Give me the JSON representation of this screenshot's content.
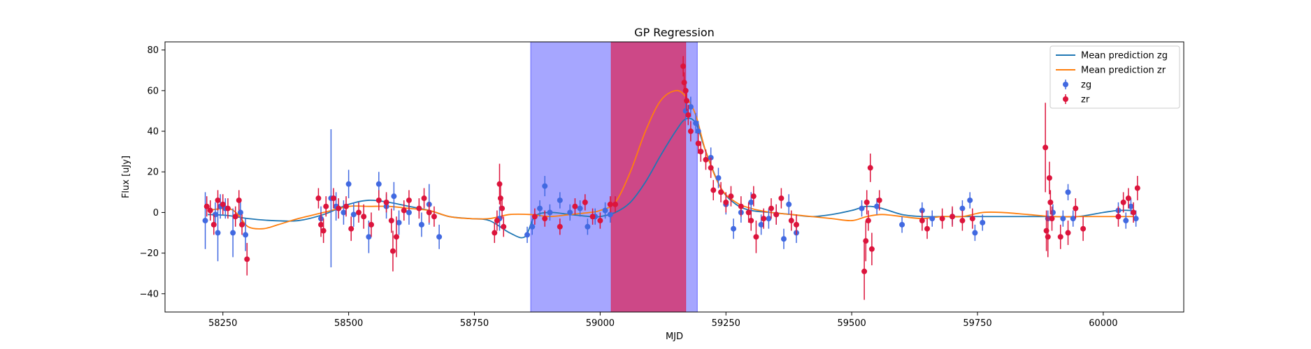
{
  "chart_data": {
    "type": "scatter",
    "title": "GP Regression",
    "xlabel": "MJD",
    "ylabel": "Flux [uJy]",
    "xlim": [
      58135,
      60160
    ],
    "ylim": [
      -49,
      84
    ],
    "x_ticks": [
      58250,
      58500,
      58750,
      59000,
      59250,
      59500,
      59750,
      60000
    ],
    "y_ticks": [
      -40,
      -20,
      0,
      20,
      40,
      60,
      80
    ],
    "grid": false,
    "legend_position": "top-right",
    "colors": {
      "zg_line": "#1f77b4",
      "zr_line": "#ff7f0e",
      "zg_points": "#4169e1",
      "zr_points": "#dc143c",
      "span_blue": "#6666ff",
      "span_red": "#d6336c"
    },
    "spans": [
      {
        "x0": 58862,
        "x1": 59193,
        "color": "#6666ff",
        "opacity": 0.58
      },
      {
        "x0": 59022,
        "x1": 59170,
        "color": "#d6336c",
        "opacity": 0.82
      }
    ],
    "series": [
      {
        "name": "Mean prediction zg",
        "kind": "line",
        "color": "#1f77b4",
        "x": [
          58220,
          58260,
          58300,
          58350,
          58400,
          58450,
          58500,
          58540,
          58580,
          58620,
          58660,
          58700,
          58740,
          58780,
          58820,
          58850,
          58870,
          58900,
          58940,
          58980,
          59000,
          59030,
          59060,
          59090,
          59120,
          59150,
          59170,
          59190,
          59210,
          59240,
          59270,
          59300,
          59340,
          59380,
          59420,
          59460,
          59500,
          59530,
          59560,
          59600,
          59640,
          59680,
          59720,
          59760,
          59800,
          59850,
          59900,
          59950,
          60000,
          60030,
          60060
        ],
        "y": [
          -1,
          -1.5,
          -3,
          -4,
          -4,
          -1,
          4,
          6,
          5,
          3,
          1,
          -2,
          -3,
          -4,
          -10,
          -12,
          -2,
          0,
          -1,
          -2,
          -2,
          0,
          5,
          15,
          28,
          40,
          46,
          44,
          30,
          12,
          4,
          1,
          0,
          -1,
          -2,
          -1,
          1,
          3,
          2,
          -1,
          -2,
          -2,
          -2,
          -2,
          -2,
          -2,
          -2,
          -2,
          0,
          1,
          1
        ]
      },
      {
        "name": "Mean prediction zr",
        "kind": "line",
        "color": "#ff7f0e",
        "x": [
          58220,
          58260,
          58280,
          58300,
          58330,
          58360,
          58400,
          58450,
          58500,
          58540,
          58580,
          58620,
          58660,
          58700,
          58740,
          58780,
          58820,
          58860,
          58900,
          58940,
          58980,
          59000,
          59030,
          59060,
          59090,
          59120,
          59150,
          59170,
          59190,
          59210,
          59240,
          59270,
          59300,
          59340,
          59380,
          59420,
          59460,
          59500,
          59530,
          59560,
          59600,
          59640,
          59680,
          59720,
          59760,
          59800,
          59850,
          59900,
          59950,
          60000,
          60030,
          60060
        ],
        "y": [
          1,
          2,
          -1,
          -7,
          -8,
          -6,
          -3,
          0,
          3,
          3,
          3,
          2,
          1,
          -2,
          -3,
          -3,
          -1,
          -1,
          -2,
          -1,
          0,
          1,
          5,
          20,
          40,
          55,
          60,
          57,
          48,
          30,
          12,
          5,
          2,
          0,
          -1,
          -2,
          -3,
          -4,
          -2,
          -1,
          -2,
          -3,
          -2,
          -2,
          0,
          0,
          -1,
          -2,
          -2,
          -2,
          -2,
          -2
        ]
      },
      {
        "name": "zg",
        "kind": "errorbar",
        "color": "#4169e1",
        "points": [
          [
            58215,
            -4,
            14
          ],
          [
            58235,
            -1,
            6
          ],
          [
            58240,
            -10,
            14
          ],
          [
            58245,
            3,
            6
          ],
          [
            58255,
            2,
            5
          ],
          [
            58270,
            -10,
            12
          ],
          [
            58285,
            0,
            6
          ],
          [
            58295,
            -11,
            8
          ],
          [
            58445,
            -3,
            6
          ],
          [
            58465,
            7,
            34
          ],
          [
            58475,
            3,
            7
          ],
          [
            58490,
            0,
            6
          ],
          [
            58500,
            14,
            7
          ],
          [
            58510,
            -1,
            6
          ],
          [
            58540,
            -12,
            8
          ],
          [
            58560,
            14,
            6
          ],
          [
            58575,
            3,
            6
          ],
          [
            58590,
            8,
            7
          ],
          [
            58600,
            -5,
            6
          ],
          [
            58620,
            0,
            6
          ],
          [
            58645,
            -6,
            6
          ],
          [
            58660,
            4,
            10
          ],
          [
            58680,
            -12,
            6
          ],
          [
            58800,
            -3,
            6
          ],
          [
            58855,
            -11,
            4
          ],
          [
            58865,
            -7,
            4
          ],
          [
            58880,
            2,
            4
          ],
          [
            58890,
            13,
            5
          ],
          [
            58900,
            0,
            4
          ],
          [
            58920,
            6,
            4
          ],
          [
            58940,
            0,
            4
          ],
          [
            58960,
            2,
            4
          ],
          [
            58975,
            -7,
            4
          ],
          [
            58990,
            -2,
            4
          ],
          [
            59010,
            1,
            4
          ],
          [
            59020,
            -1,
            4
          ],
          [
            59170,
            50,
            5
          ],
          [
            59180,
            52,
            5
          ],
          [
            59190,
            44,
            5
          ],
          [
            59195,
            40,
            5
          ],
          [
            59200,
            30,
            5
          ],
          [
            59220,
            27,
            5
          ],
          [
            59235,
            17,
            5
          ],
          [
            59250,
            4,
            5
          ],
          [
            59265,
            -8,
            5
          ],
          [
            59280,
            0,
            5
          ],
          [
            59300,
            5,
            5
          ],
          [
            59320,
            -6,
            5
          ],
          [
            59335,
            -3,
            5
          ],
          [
            59350,
            -1,
            5
          ],
          [
            59365,
            -13,
            5
          ],
          [
            59375,
            4,
            5
          ],
          [
            59390,
            -10,
            5
          ],
          [
            59520,
            2,
            4
          ],
          [
            59550,
            3,
            4
          ],
          [
            59600,
            -6,
            4
          ],
          [
            59640,
            1,
            4
          ],
          [
            59660,
            -3,
            4
          ],
          [
            59700,
            -2,
            4
          ],
          [
            59720,
            2,
            4
          ],
          [
            59735,
            6,
            4
          ],
          [
            59745,
            -10,
            4
          ],
          [
            59760,
            -5,
            4
          ],
          [
            59890,
            -3,
            4
          ],
          [
            59900,
            0,
            4
          ],
          [
            59920,
            -3,
            4
          ],
          [
            59930,
            10,
            4
          ],
          [
            59940,
            -3,
            4
          ],
          [
            60030,
            1,
            4
          ],
          [
            60045,
            -4,
            4
          ],
          [
            60055,
            3,
            4
          ],
          [
            60065,
            -3,
            4
          ]
        ]
      },
      {
        "name": "zr",
        "kind": "errorbar",
        "color": "#dc143c",
        "points": [
          [
            58218,
            3,
            5
          ],
          [
            58225,
            1,
            5
          ],
          [
            58232,
            -6,
            5
          ],
          [
            58240,
            6,
            5
          ],
          [
            58250,
            4,
            5
          ],
          [
            58260,
            2,
            5
          ],
          [
            58275,
            -2,
            5
          ],
          [
            58282,
            6,
            5
          ],
          [
            58288,
            -6,
            5
          ],
          [
            58298,
            -23,
            8
          ],
          [
            58440,
            7,
            5
          ],
          [
            58445,
            -6,
            6
          ],
          [
            58450,
            -9,
            6
          ],
          [
            58455,
            3,
            5
          ],
          [
            58470,
            7,
            5
          ],
          [
            58480,
            2,
            5
          ],
          [
            58495,
            3,
            5
          ],
          [
            58505,
            -8,
            6
          ],
          [
            58520,
            0,
            5
          ],
          [
            58530,
            -2,
            6
          ],
          [
            58545,
            -6,
            6
          ],
          [
            58560,
            6,
            5
          ],
          [
            58575,
            5,
            5
          ],
          [
            58585,
            -4,
            6
          ],
          [
            58588,
            -19,
            10
          ],
          [
            58595,
            -12,
            10
          ],
          [
            58610,
            1,
            5
          ],
          [
            58620,
            6,
            5
          ],
          [
            58640,
            2,
            5
          ],
          [
            58650,
            7,
            5
          ],
          [
            58660,
            0,
            5
          ],
          [
            58670,
            -2,
            5
          ],
          [
            58790,
            -10,
            5
          ],
          [
            58795,
            -4,
            5
          ],
          [
            58800,
            14,
            10
          ],
          [
            58802,
            7,
            6
          ],
          [
            58805,
            2,
            5
          ],
          [
            58808,
            -7,
            5
          ],
          [
            58870,
            -2,
            4
          ],
          [
            58890,
            -3,
            4
          ],
          [
            58920,
            -7,
            4
          ],
          [
            58950,
            3,
            4
          ],
          [
            58970,
            5,
            4
          ],
          [
            58985,
            -2,
            4
          ],
          [
            59000,
            -4,
            4
          ],
          [
            59020,
            4,
            4
          ],
          [
            59030,
            4,
            4
          ],
          [
            59165,
            72,
            5
          ],
          [
            59167,
            64,
            5
          ],
          [
            59170,
            60,
            5
          ],
          [
            59172,
            55,
            5
          ],
          [
            59175,
            48,
            5
          ],
          [
            59180,
            40,
            5
          ],
          [
            59195,
            34,
            5
          ],
          [
            59200,
            30,
            5
          ],
          [
            59210,
            26,
            5
          ],
          [
            59220,
            22,
            5
          ],
          [
            59225,
            11,
            5
          ],
          [
            59240,
            10,
            5
          ],
          [
            59250,
            5,
            5
          ],
          [
            59260,
            8,
            5
          ],
          [
            59280,
            3,
            5
          ],
          [
            59295,
            0,
            5
          ],
          [
            59300,
            -4,
            5
          ],
          [
            59305,
            8,
            5
          ],
          [
            59310,
            -12,
            8
          ],
          [
            59325,
            -3,
            5
          ],
          [
            59340,
            2,
            5
          ],
          [
            59350,
            -1,
            5
          ],
          [
            59360,
            7,
            5
          ],
          [
            59380,
            -4,
            5
          ],
          [
            59390,
            -6,
            5
          ],
          [
            59525,
            -29,
            14
          ],
          [
            59528,
            -14,
            10
          ],
          [
            59530,
            5,
            6
          ],
          [
            59533,
            -4,
            5
          ],
          [
            59537,
            22,
            7
          ],
          [
            59540,
            -18,
            8
          ],
          [
            59555,
            6,
            5
          ],
          [
            59640,
            -4,
            5
          ],
          [
            59650,
            -8,
            5
          ],
          [
            59680,
            -3,
            5
          ],
          [
            59700,
            -2,
            5
          ],
          [
            59720,
            -4,
            5
          ],
          [
            59740,
            -3,
            5
          ],
          [
            59885,
            32,
            22
          ],
          [
            59887,
            -9,
            10
          ],
          [
            59890,
            -12,
            10
          ],
          [
            59893,
            17,
            8
          ],
          [
            59895,
            5,
            6
          ],
          [
            59898,
            -3,
            6
          ],
          [
            59915,
            -12,
            6
          ],
          [
            59930,
            -10,
            6
          ],
          [
            59945,
            2,
            5
          ],
          [
            59960,
            -8,
            6
          ],
          [
            60030,
            -2,
            5
          ],
          [
            60040,
            5,
            5
          ],
          [
            60050,
            7,
            5
          ],
          [
            60060,
            0,
            5
          ],
          [
            60068,
            12,
            6
          ]
        ]
      }
    ]
  }
}
